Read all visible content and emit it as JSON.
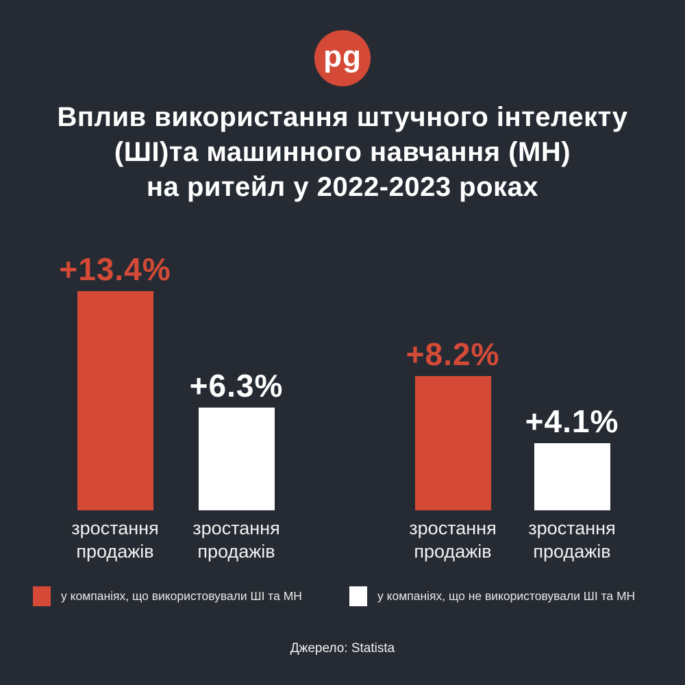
{
  "page": {
    "background_color": "#262B33",
    "accent_red": "#D54A37",
    "text_white": "#FFFFFF"
  },
  "logo": {
    "text": "pg",
    "color": "#D54A37"
  },
  "title": {
    "line1": "Вплив використання штучного інтелекту",
    "line2": "(ШІ)та машинного навчання (МН)",
    "line3": "на ритейл у 2022-2023 роках"
  },
  "chart_data": {
    "type": "bar",
    "title": "Вплив використання штучного інтелекту (ШІ) та машинного навчання (МН) на ритейл у 2022-2023 роках",
    "value_unit": "%",
    "max_value": 13.4,
    "bars": [
      {
        "value": 13.4,
        "value_label": "+13.4%",
        "category": "зростання продажів",
        "series": "у компаніях, що використовували ШІ та МН",
        "color": "#D54A37"
      },
      {
        "value": 6.3,
        "value_label": "+6.3%",
        "category": "зростання продажів",
        "series": "у компаніях, що не використовували ШІ та МН",
        "color": "#FFFFFF"
      },
      {
        "value": 8.2,
        "value_label": "+8.2%",
        "category": "зростання продажів",
        "series": "у компаніях, що використовували ШІ та МН",
        "color": "#D54A37"
      },
      {
        "value": 4.1,
        "value_label": "+4.1%",
        "category": "зростання продажів",
        "series": "у компаніях, що не використовували ШІ та МН",
        "color": "#FFFFFF"
      }
    ],
    "legend": [
      {
        "label": "у компаніях, що використовували ШІ та МН",
        "color": "#D54A37"
      },
      {
        "label": "у компаніях, що не використовували ШІ та МН",
        "color": "#FFFFFF"
      }
    ],
    "legend_position": "bottom",
    "grid": false
  },
  "source": {
    "text": "Джерело: Statista"
  }
}
